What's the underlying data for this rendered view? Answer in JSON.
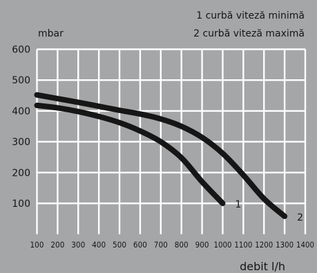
{
  "chart_data": {
    "type": "line",
    "title": "",
    "xlabel": "debit l/h",
    "ylabel": "mbar",
    "xlim": [
      100,
      1400
    ],
    "ylim": [
      0,
      600
    ],
    "x_ticks": [
      100,
      200,
      300,
      400,
      500,
      600,
      700,
      800,
      900,
      1000,
      1100,
      1200,
      1300,
      1400
    ],
    "y_ticks": [
      100,
      200,
      300,
      400,
      500,
      600
    ],
    "x_tick_labels": [
      "100",
      "200",
      "300",
      "400",
      "500",
      "600",
      "700",
      "800",
      "900",
      "1000",
      "1100",
      "1200",
      "1300",
      "1400"
    ],
    "y_tick_labels": [
      "100",
      "200",
      "300",
      "400",
      "500",
      "600"
    ],
    "grid": true,
    "legend_lines": [
      "1 curbă viteză minimă",
      "2 curbă viteză maximă"
    ],
    "legend_position": "top-right",
    "colors": {
      "background": "#a5a6a8",
      "grid": "#ffffff",
      "curve": "#161616",
      "text": "#161616"
    },
    "series": [
      {
        "label": "1",
        "x": [
          100,
          200,
          300,
          400,
          500,
          600,
          700,
          800,
          900,
          1000
        ],
        "y": [
          418,
          410,
          398,
          382,
          362,
          335,
          300,
          248,
          170,
          100
        ]
      },
      {
        "label": "2",
        "x": [
          100,
          200,
          300,
          400,
          500,
          600,
          700,
          800,
          900,
          1000,
          1100,
          1200,
          1300
        ],
        "y": [
          452,
          440,
          428,
          415,
          402,
          390,
          374,
          350,
          314,
          262,
          192,
          115,
          58
        ]
      }
    ]
  }
}
